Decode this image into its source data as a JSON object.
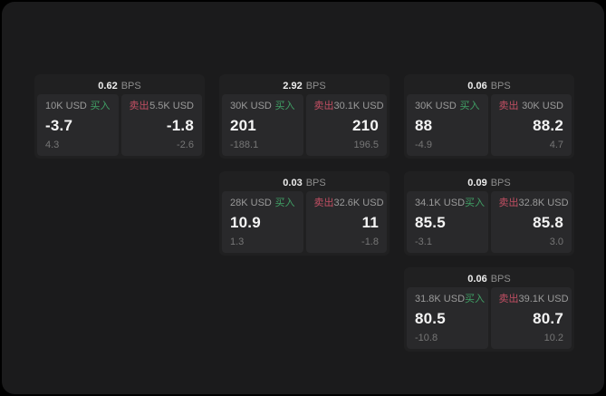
{
  "colors": {
    "buy-green": "#40a065",
    "sell-red": "#c24f63",
    "page-bg": "#000000",
    "panel-bg": "#1b1b1c",
    "card-bg": "#202021",
    "cell-bg": "#29292b"
  },
  "labels": {
    "buy": "买入",
    "sell": "卖出",
    "bps": "BPS"
  },
  "cards": [
    {
      "bps": "0.62",
      "row": 1,
      "col": 1,
      "buy": {
        "amount": "10K USD",
        "value": "-3.7",
        "delta": "4.3"
      },
      "sell": {
        "amount": "5.5K USD",
        "value": "-1.8",
        "delta": "-2.6"
      }
    },
    {
      "bps": "2.92",
      "row": 1,
      "col": 2,
      "buy": {
        "amount": "30K USD",
        "value": "201",
        "delta": "-188.1"
      },
      "sell": {
        "amount": "30.1K USD",
        "value": "210",
        "delta": "196.5"
      }
    },
    {
      "bps": "0.06",
      "row": 1,
      "col": 3,
      "buy": {
        "amount": "30K USD",
        "value": "88",
        "delta": "-4.9"
      },
      "sell": {
        "amount": "30K USD",
        "value": "88.2",
        "delta": "4.7"
      }
    },
    {
      "bps": "0.03",
      "row": 2,
      "col": 2,
      "buy": {
        "amount": "28K USD",
        "value": "10.9",
        "delta": "1.3"
      },
      "sell": {
        "amount": "32.6K USD",
        "value": "11",
        "delta": "-1.8"
      }
    },
    {
      "bps": "0.09",
      "row": 2,
      "col": 3,
      "buy": {
        "amount": "34.1K USD",
        "value": "85.5",
        "delta": "-3.1"
      },
      "sell": {
        "amount": "32.8K USD",
        "value": "85.8",
        "delta": "3.0"
      }
    },
    {
      "bps": "0.06",
      "row": 3,
      "col": 3,
      "buy": {
        "amount": "31.8K USD",
        "value": "80.5",
        "delta": "-10.8"
      },
      "sell": {
        "amount": "39.1K USD",
        "value": "80.7",
        "delta": "10.2"
      }
    }
  ]
}
